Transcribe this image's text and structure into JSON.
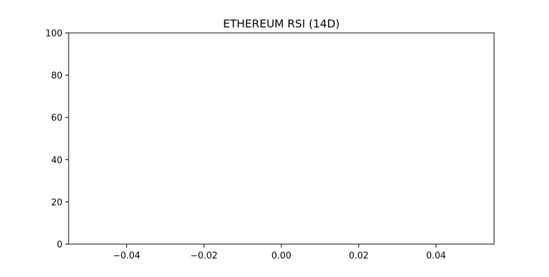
{
  "chart_data": {
    "type": "line",
    "title": "ETHEREUM RSI (14D)",
    "xlabel": "",
    "ylabel": "",
    "xlim": [
      -0.055,
      0.055
    ],
    "ylim": [
      0,
      100
    ],
    "x_ticks": [
      -0.04,
      -0.02,
      0.0,
      0.02,
      0.04
    ],
    "x_tick_labels": [
      "−0.04",
      "−0.02",
      "0.00",
      "0.02",
      "0.04"
    ],
    "y_ticks": [
      0,
      20,
      40,
      60,
      80,
      100
    ],
    "y_tick_labels": [
      "0",
      "20",
      "40",
      "60",
      "80",
      "100"
    ],
    "series": [],
    "grid": false,
    "legend": "none"
  }
}
